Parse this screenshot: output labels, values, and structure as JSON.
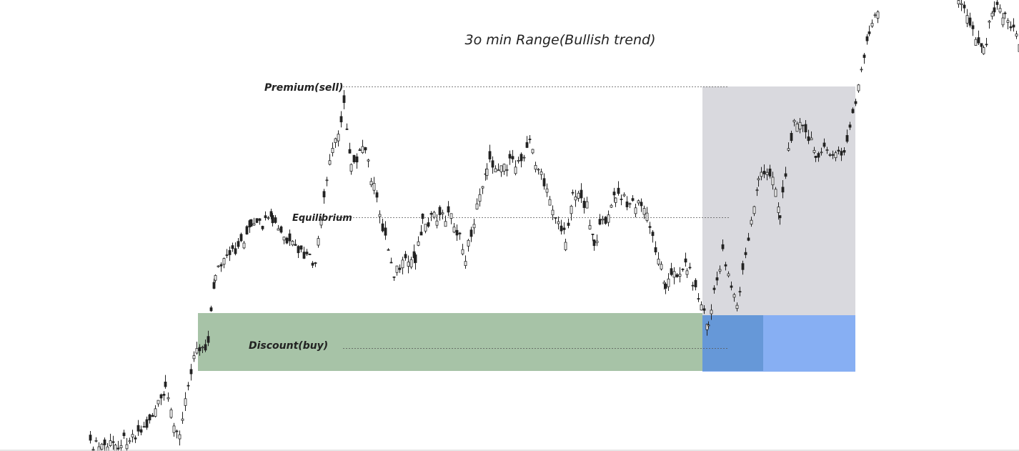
{
  "title": "3o min Range(Bullish trend)",
  "labels": {
    "premium": "Premium(sell)",
    "equilibrium": "Equilibrium",
    "discount": "Discount(buy)"
  }
}
